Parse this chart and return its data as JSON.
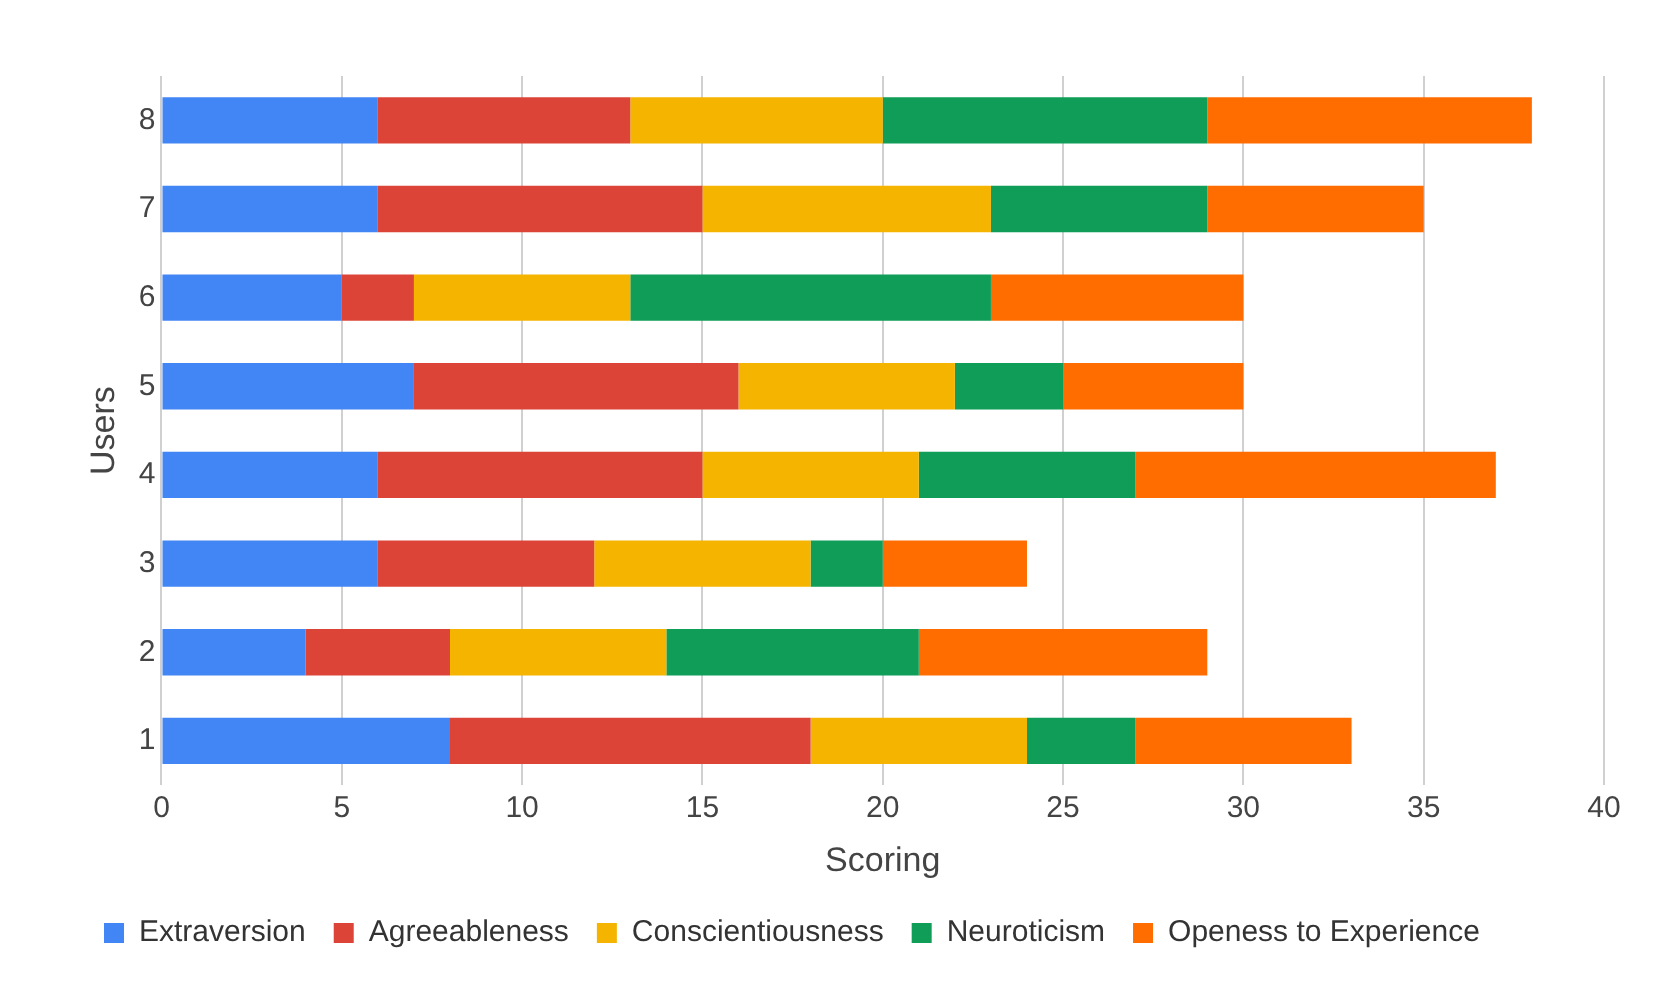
{
  "chart_data": {
    "type": "bar",
    "orientation": "horizontal",
    "stacked": true,
    "xlabel": "Scoring",
    "ylabel": "Users",
    "categories": [
      "8",
      "7",
      "6",
      "5",
      "4",
      "3",
      "2",
      "1"
    ],
    "series": [
      {
        "name": "Extraversion",
        "color": "#4285f4",
        "values": [
          6,
          6,
          5,
          7,
          6,
          6,
          4,
          8
        ]
      },
      {
        "name": "Agreeableness",
        "color": "#db4437",
        "values": [
          7,
          9,
          2,
          9,
          9,
          6,
          4,
          10
        ]
      },
      {
        "name": "Conscientiousness",
        "color": "#f4b400",
        "values": [
          7,
          8,
          6,
          6,
          6,
          6,
          6,
          6
        ]
      },
      {
        "name": "Neuroticism",
        "color": "#0f9d58",
        "values": [
          9,
          6,
          10,
          3,
          6,
          2,
          7,
          3
        ]
      },
      {
        "name": "Openess to Experience",
        "color": "#ff6d00",
        "values": [
          9,
          6,
          7,
          5,
          10,
          4,
          8,
          6
        ]
      }
    ],
    "xlim": [
      0,
      40
    ],
    "xticks": [
      0,
      5,
      10,
      15,
      20,
      25,
      30,
      35,
      40
    ],
    "grid": "x",
    "legend": "bottom"
  }
}
